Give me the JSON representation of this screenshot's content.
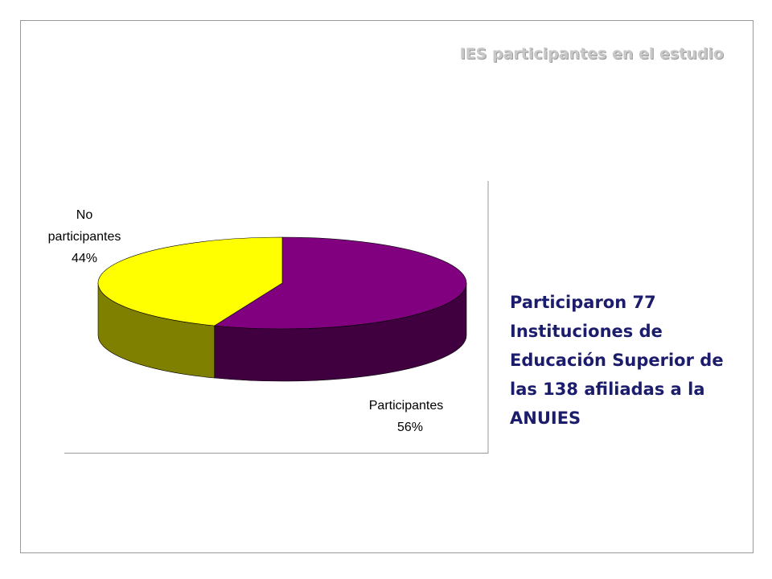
{
  "chart_data": {
    "type": "pie",
    "title": "IES participantes en el estudio",
    "categories": [
      "Participantes",
      "No participantes"
    ],
    "values": [
      56,
      44
    ],
    "value_labels": [
      "56%",
      "44%"
    ],
    "colors": [
      "#800080",
      "#ffff00"
    ],
    "annotation": "Participaron 77 Instituciones de Educación Superior de las 138 afiliadas a la ANUIES"
  }
}
